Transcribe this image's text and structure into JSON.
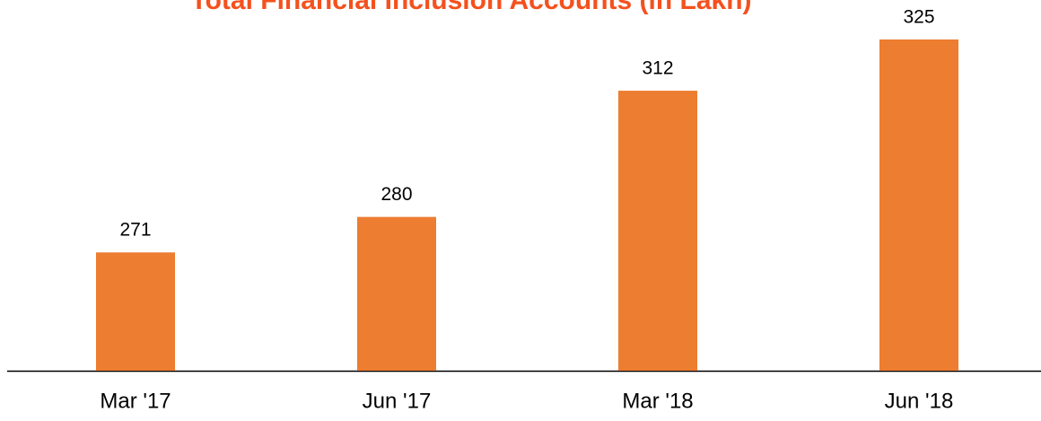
{
  "chart_data": {
    "type": "bar",
    "title": "Total Financial Inclusion Accounts (in Lakh)",
    "categories": [
      "Mar '17",
      "Jun '17",
      "Mar '18",
      "Jun '18"
    ],
    "values": [
      271,
      280,
      312,
      325
    ],
    "color": "#ed7d31",
    "ylim": [
      241,
      330
    ]
  }
}
